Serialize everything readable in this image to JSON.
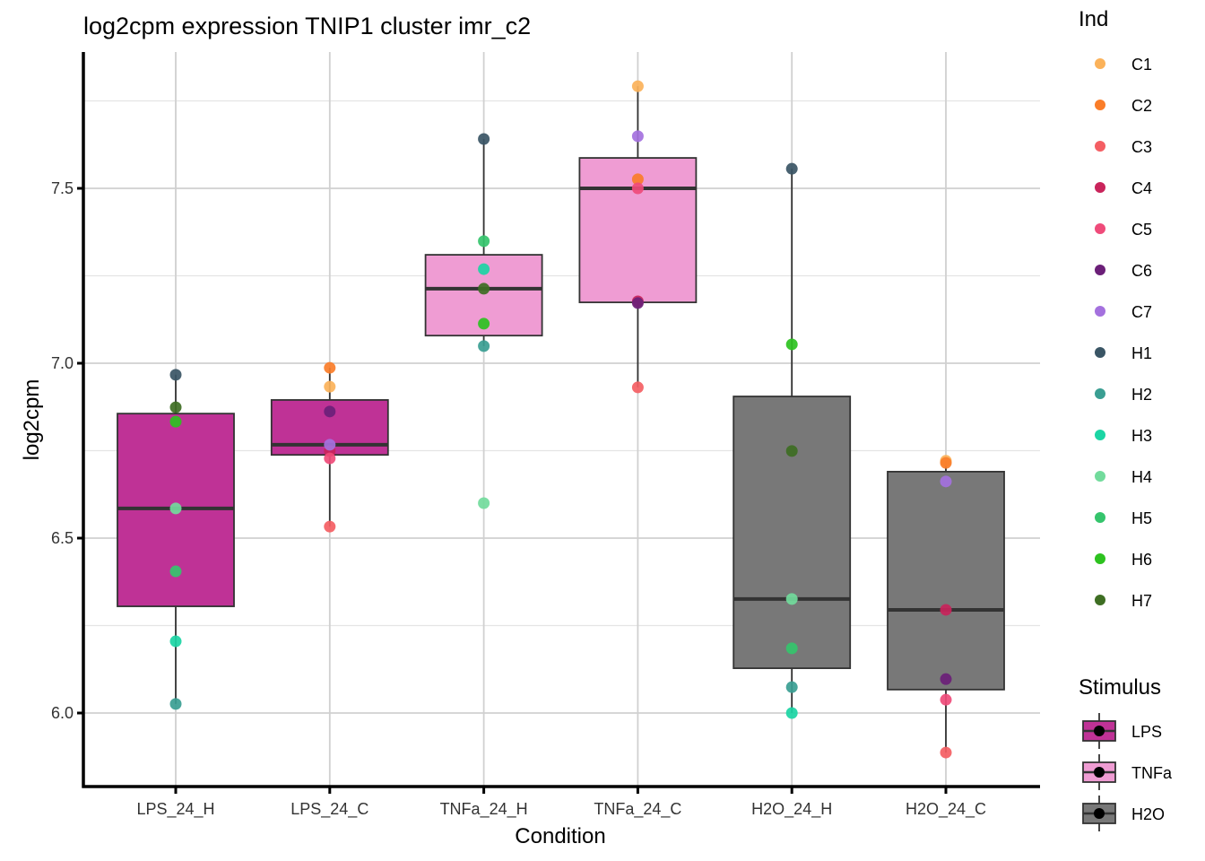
{
  "chart_data": {
    "type": "boxplot",
    "title": "log2cpm expression TNIP1 cluster imr_c2",
    "xlabel": "Condition",
    "ylabel": "log2cpm",
    "ylim": [
      5.82,
      7.86
    ],
    "yticks": [
      6.0,
      6.5,
      7.0,
      7.5
    ],
    "ytick_labels": [
      "6.0",
      "6.5",
      "7.0",
      "7.5"
    ],
    "yminor": [
      6.25,
      6.75,
      7.25,
      7.75
    ],
    "grid": true,
    "categories": [
      "LPS_24_H",
      "LPS_24_C",
      "TNFa_24_H",
      "TNFa_24_C",
      "H2O_24_H",
      "H2O_24_C"
    ],
    "boxes": [
      {
        "condition": "LPS_24_H",
        "stimulus": "LPS",
        "lower_whisker": 6.026,
        "q1": 6.305,
        "median": 6.585,
        "q3": 6.856,
        "upper_whisker": 6.967
      },
      {
        "condition": "LPS_24_C",
        "stimulus": "LPS",
        "lower_whisker": 6.533,
        "q1": 6.738,
        "median": 6.767,
        "q3": 6.895,
        "upper_whisker": 6.987
      },
      {
        "condition": "TNFa_24_H",
        "stimulus": "TNFa",
        "lower_whisker": 7.049,
        "q1": 7.079,
        "median": 7.213,
        "q3": 7.31,
        "upper_whisker": 7.641
      },
      {
        "condition": "TNFa_24_C",
        "stimulus": "TNFa",
        "lower_whisker": 6.931,
        "q1": 7.174,
        "median": 7.5,
        "q3": 7.587,
        "upper_whisker": 7.792
      },
      {
        "condition": "H2O_24_H",
        "stimulus": "H2O",
        "lower_whisker": 6.0,
        "q1": 6.128,
        "median": 6.326,
        "q3": 6.905,
        "upper_whisker": 7.556
      },
      {
        "condition": "H2O_24_C",
        "stimulus": "H2O",
        "lower_whisker": 5.887,
        "q1": 6.067,
        "median": 6.295,
        "q3": 6.69,
        "upper_whisker": 6.721
      }
    ],
    "points": [
      {
        "condition": "LPS_24_H",
        "ind": "H1",
        "value": 6.967
      },
      {
        "condition": "LPS_24_H",
        "ind": "H7",
        "value": 6.874
      },
      {
        "condition": "LPS_24_H",
        "ind": "H6",
        "value": 6.833
      },
      {
        "condition": "LPS_24_H",
        "ind": "H4",
        "value": 6.585
      },
      {
        "condition": "LPS_24_H",
        "ind": "H5",
        "value": 6.405
      },
      {
        "condition": "LPS_24_H",
        "ind": "H3",
        "value": 6.205
      },
      {
        "condition": "LPS_24_H",
        "ind": "H2",
        "value": 6.026
      },
      {
        "condition": "LPS_24_C",
        "ind": "C2",
        "value": 6.987
      },
      {
        "condition": "LPS_24_C",
        "ind": "C1",
        "value": 6.933
      },
      {
        "condition": "LPS_24_C",
        "ind": "C6",
        "value": 6.862
      },
      {
        "condition": "LPS_24_C",
        "ind": "C4",
        "value": 6.749
      },
      {
        "condition": "LPS_24_C",
        "ind": "C5",
        "value": 6.728
      },
      {
        "condition": "LPS_24_C",
        "ind": "C7",
        "value": 6.767
      },
      {
        "condition": "LPS_24_C",
        "ind": "C3",
        "value": 6.533
      },
      {
        "condition": "TNFa_24_H",
        "ind": "H1",
        "value": 7.641
      },
      {
        "condition": "TNFa_24_H",
        "ind": "H5",
        "value": 7.349
      },
      {
        "condition": "TNFa_24_H",
        "ind": "H3",
        "value": 7.269
      },
      {
        "condition": "TNFa_24_H",
        "ind": "H7",
        "value": 7.213
      },
      {
        "condition": "TNFa_24_H",
        "ind": "H6",
        "value": 7.113
      },
      {
        "condition": "TNFa_24_H",
        "ind": "H2",
        "value": 7.049
      },
      {
        "condition": "TNFa_24_H",
        "ind": "H4",
        "value": 6.6
      },
      {
        "condition": "TNFa_24_C",
        "ind": "C1",
        "value": 7.792
      },
      {
        "condition": "TNFa_24_C",
        "ind": "C7",
        "value": 7.649
      },
      {
        "condition": "TNFa_24_C",
        "ind": "C2",
        "value": 7.526
      },
      {
        "condition": "TNFa_24_C",
        "ind": "C5",
        "value": 7.5
      },
      {
        "condition": "TNFa_24_C",
        "ind": "C4",
        "value": 7.177
      },
      {
        "condition": "TNFa_24_C",
        "ind": "C6",
        "value": 7.172
      },
      {
        "condition": "TNFa_24_C",
        "ind": "C3",
        "value": 6.931
      },
      {
        "condition": "H2O_24_H",
        "ind": "H1",
        "value": 7.556
      },
      {
        "condition": "H2O_24_H",
        "ind": "H6",
        "value": 7.054
      },
      {
        "condition": "H2O_24_H",
        "ind": "H7",
        "value": 6.749
      },
      {
        "condition": "H2O_24_H",
        "ind": "H4",
        "value": 6.326
      },
      {
        "condition": "H2O_24_H",
        "ind": "H5",
        "value": 6.185
      },
      {
        "condition": "H2O_24_H",
        "ind": "H2",
        "value": 6.074
      },
      {
        "condition": "H2O_24_H",
        "ind": "H3",
        "value": 6.0
      },
      {
        "condition": "H2O_24_C",
        "ind": "C1",
        "value": 6.721
      },
      {
        "condition": "H2O_24_C",
        "ind": "C2",
        "value": 6.715
      },
      {
        "condition": "H2O_24_C",
        "ind": "C7",
        "value": 6.662
      },
      {
        "condition": "H2O_24_C",
        "ind": "C4",
        "value": 6.295
      },
      {
        "condition": "H2O_24_C",
        "ind": "C6",
        "value": 6.097
      },
      {
        "condition": "H2O_24_C",
        "ind": "C5",
        "value": 6.038
      },
      {
        "condition": "H2O_24_C",
        "ind": "C3",
        "value": 5.887
      }
    ],
    "legends": [
      {
        "title": "Ind",
        "placement": "top-right",
        "entries": [
          {
            "label": "C1",
            "color": "#FBB25A"
          },
          {
            "label": "C2",
            "color": "#FA7D29"
          },
          {
            "label": "C3",
            "color": "#F45E63"
          },
          {
            "label": "C4",
            "color": "#C9245B"
          },
          {
            "label": "C5",
            "color": "#EF4B7A"
          },
          {
            "label": "C6",
            "color": "#6B1F78"
          },
          {
            "label": "C7",
            "color": "#A471DE"
          },
          {
            "label": "H1",
            "color": "#3A5565"
          },
          {
            "label": "H2",
            "color": "#3A9E92"
          },
          {
            "label": "H3",
            "color": "#1BD5A4"
          },
          {
            "label": "H4",
            "color": "#72DB9C"
          },
          {
            "label": "H5",
            "color": "#35C46C"
          },
          {
            "label": "H6",
            "color": "#2DC21F"
          },
          {
            "label": "H7",
            "color": "#3E6E23"
          }
        ]
      },
      {
        "title": "Stimulus",
        "placement": "bottom-right",
        "entries": [
          {
            "label": "LPS",
            "color": "#BF3296"
          },
          {
            "label": "TNFa",
            "color": "#EF9CD3"
          },
          {
            "label": "H2O",
            "color": "#787878"
          }
        ]
      }
    ]
  }
}
